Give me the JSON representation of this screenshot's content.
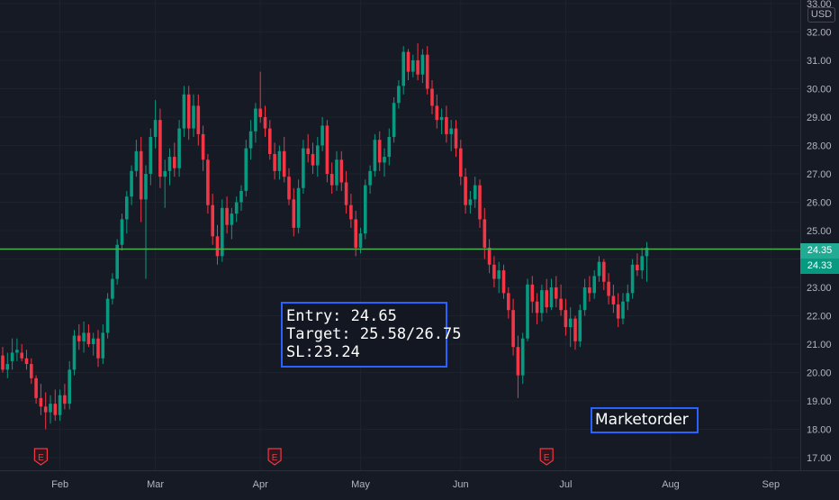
{
  "chart_data": {
    "type": "candlestick",
    "currency": "USD",
    "y_ticks": [
      "17.00",
      "18.00",
      "19.00",
      "20.00",
      "21.00",
      "22.00",
      "23.00",
      "24.00",
      "25.00",
      "26.00",
      "27.00",
      "28.00",
      "29.00",
      "30.00",
      "31.00",
      "32.00",
      "33.00"
    ],
    "ylim": [
      16.9,
      33.0
    ],
    "x_ticks": [
      {
        "label": "Feb",
        "index": 12
      },
      {
        "label": "Mar",
        "index": 32
      },
      {
        "label": "Apr",
        "index": 54
      },
      {
        "label": "May",
        "index": 75
      },
      {
        "label": "Jun",
        "index": 96
      },
      {
        "label": "Jul",
        "index": 118
      },
      {
        "label": "Aug",
        "index": 140
      },
      {
        "label": "Sep",
        "index": 161
      }
    ],
    "earnings_markers": [
      8,
      57,
      114
    ],
    "horizontal_line": 24.35,
    "price_labels": [
      {
        "value": "24.35",
        "color": "#22ab94"
      },
      {
        "value": "24.33",
        "color": "#089981"
      }
    ],
    "candles": [
      [
        20.6,
        20.9,
        20.0,
        20.1
      ],
      [
        20.1,
        20.7,
        19.8,
        20.3
      ],
      [
        20.4,
        21.2,
        20.1,
        20.7
      ],
      [
        20.7,
        21.2,
        20.4,
        20.8
      ],
      [
        20.7,
        21.0,
        20.4,
        20.5
      ],
      [
        20.5,
        20.8,
        20.1,
        20.3
      ],
      [
        20.3,
        20.5,
        19.6,
        19.8
      ],
      [
        19.8,
        19.9,
        18.9,
        19.1
      ],
      [
        19.1,
        19.6,
        18.5,
        18.8
      ],
      [
        18.8,
        19.3,
        18.0,
        18.6
      ],
      [
        18.6,
        19.2,
        18.2,
        18.9
      ],
      [
        18.9,
        19.4,
        18.3,
        18.5
      ],
      [
        18.5,
        19.4,
        18.3,
        19.2
      ],
      [
        19.2,
        19.6,
        18.7,
        18.9
      ],
      [
        18.9,
        20.4,
        18.7,
        20.1
      ],
      [
        20.1,
        21.5,
        19.9,
        21.3
      ],
      [
        21.3,
        21.7,
        20.8,
        21.1
      ],
      [
        21.1,
        21.8,
        20.7,
        21.4
      ],
      [
        21.4,
        21.7,
        20.9,
        21.0
      ],
      [
        21.0,
        21.4,
        20.6,
        21.2
      ],
      [
        21.2,
        21.5,
        20.2,
        20.5
      ],
      [
        20.5,
        21.7,
        20.3,
        21.4
      ],
      [
        21.4,
        22.8,
        21.2,
        22.6
      ],
      [
        22.6,
        23.5,
        22.4,
        23.3
      ],
      [
        23.3,
        24.7,
        23.1,
        24.5
      ],
      [
        24.5,
        25.6,
        24.3,
        25.4
      ],
      [
        25.4,
        26.4,
        24.9,
        26.2
      ],
      [
        26.2,
        27.3,
        25.9,
        27.1
      ],
      [
        27.1,
        28.2,
        26.9,
        27.8
      ],
      [
        27.8,
        28.3,
        25.3,
        26.1
      ],
      [
        26.1,
        27.3,
        23.3,
        27.0
      ],
      [
        27.0,
        28.6,
        26.6,
        28.3
      ],
      [
        28.3,
        29.6,
        27.9,
        28.9
      ],
      [
        28.9,
        29.3,
        26.5,
        26.9
      ],
      [
        26.9,
        27.5,
        25.8,
        27.1
      ],
      [
        27.1,
        27.9,
        26.6,
        27.6
      ],
      [
        27.6,
        28.1,
        26.9,
        27.2
      ],
      [
        27.2,
        28.9,
        26.9,
        28.6
      ],
      [
        28.6,
        30.1,
        28.3,
        29.8
      ],
      [
        29.8,
        30.1,
        28.2,
        28.6
      ],
      [
        28.6,
        29.8,
        28.3,
        29.4
      ],
      [
        29.4,
        29.8,
        28.0,
        28.4
      ],
      [
        28.4,
        28.7,
        27.1,
        27.5
      ],
      [
        27.5,
        27.7,
        25.6,
        25.9
      ],
      [
        25.9,
        26.3,
        24.5,
        24.8
      ],
      [
        24.8,
        25.2,
        23.8,
        24.1
      ],
      [
        24.1,
        26.1,
        23.9,
        25.8
      ],
      [
        25.8,
        26.2,
        24.9,
        25.2
      ],
      [
        25.2,
        25.8,
        24.7,
        25.6
      ],
      [
        25.6,
        26.2,
        25.3,
        26.0
      ],
      [
        26.0,
        26.6,
        25.7,
        26.4
      ],
      [
        26.4,
        28.2,
        26.2,
        27.9
      ],
      [
        27.9,
        28.9,
        27.5,
        28.5
      ],
      [
        28.5,
        29.5,
        28.1,
        29.3
      ],
      [
        29.3,
        30.6,
        28.8,
        29.0
      ],
      [
        29.0,
        29.4,
        28.3,
        28.6
      ],
      [
        28.6,
        28.9,
        27.5,
        27.7
      ],
      [
        27.7,
        28.1,
        26.8,
        27.1
      ],
      [
        27.1,
        28.0,
        26.8,
        27.8
      ],
      [
        27.8,
        28.3,
        26.7,
        26.9
      ],
      [
        26.9,
        27.2,
        25.9,
        26.1
      ],
      [
        26.1,
        26.5,
        24.8,
        25.1
      ],
      [
        25.1,
        26.8,
        24.9,
        26.5
      ],
      [
        26.5,
        28.2,
        26.3,
        27.9
      ],
      [
        27.9,
        28.4,
        27.4,
        27.7
      ],
      [
        27.7,
        28.1,
        27.0,
        27.3
      ],
      [
        27.3,
        28.3,
        26.9,
        28.0
      ],
      [
        28.0,
        29.0,
        27.8,
        28.7
      ],
      [
        28.7,
        28.9,
        26.7,
        27.0
      ],
      [
        27.0,
        27.4,
        26.3,
        26.6
      ],
      [
        26.6,
        27.8,
        26.4,
        27.5
      ],
      [
        27.5,
        27.8,
        26.4,
        26.7
      ],
      [
        26.7,
        27.1,
        25.6,
        25.9
      ],
      [
        25.9,
        26.3,
        25.1,
        25.4
      ],
      [
        25.4,
        25.7,
        24.1,
        24.4
      ],
      [
        24.4,
        25.1,
        24.2,
        24.9
      ],
      [
        24.9,
        26.8,
        24.7,
        26.6
      ],
      [
        26.6,
        27.3,
        26.3,
        27.1
      ],
      [
        27.1,
        28.4,
        26.9,
        28.2
      ],
      [
        28.2,
        28.5,
        27.1,
        27.4
      ],
      [
        27.4,
        27.9,
        26.9,
        27.6
      ],
      [
        27.6,
        28.6,
        27.3,
        28.3
      ],
      [
        28.3,
        29.7,
        28.1,
        29.5
      ],
      [
        29.5,
        30.3,
        29.3,
        30.1
      ],
      [
        30.1,
        31.5,
        29.8,
        31.3
      ],
      [
        31.3,
        31.4,
        30.3,
        30.6
      ],
      [
        30.6,
        31.2,
        30.4,
        31.0
      ],
      [
        31.0,
        31.6,
        30.3,
        30.5
      ],
      [
        30.5,
        31.4,
        30.2,
        31.2
      ],
      [
        31.2,
        31.5,
        29.8,
        30.0
      ],
      [
        30.0,
        30.3,
        29.1,
        29.4
      ],
      [
        29.4,
        29.8,
        28.6,
        28.9
      ],
      [
        28.9,
        29.3,
        28.4,
        29.0
      ],
      [
        29.0,
        29.4,
        28.1,
        28.4
      ],
      [
        28.4,
        28.9,
        27.8,
        28.6
      ],
      [
        28.6,
        28.9,
        27.6,
        27.9
      ],
      [
        27.9,
        28.2,
        26.6,
        26.9
      ],
      [
        26.9,
        27.2,
        25.6,
        25.9
      ],
      [
        25.9,
        26.4,
        25.6,
        26.1
      ],
      [
        26.1,
        26.9,
        25.8,
        26.6
      ],
      [
        26.6,
        26.8,
        25.1,
        25.4
      ],
      [
        25.4,
        25.8,
        24.0,
        24.4
      ],
      [
        24.4,
        24.7,
        23.5,
        23.8
      ],
      [
        23.8,
        24.1,
        23.0,
        23.3
      ],
      [
        23.3,
        23.9,
        22.8,
        23.6
      ],
      [
        23.6,
        23.8,
        22.6,
        22.8
      ],
      [
        22.8,
        23.0,
        21.9,
        22.2
      ],
      [
        22.2,
        22.6,
        20.6,
        20.9
      ],
      [
        20.9,
        21.3,
        19.1,
        19.9
      ],
      [
        19.9,
        21.4,
        19.6,
        21.2
      ],
      [
        21.2,
        23.3,
        21.1,
        23.1
      ],
      [
        23.1,
        23.4,
        22.1,
        22.5
      ],
      [
        22.5,
        22.8,
        21.7,
        22.1
      ],
      [
        22.1,
        23.1,
        21.8,
        22.9
      ],
      [
        22.9,
        23.3,
        22.1,
        22.3
      ],
      [
        22.3,
        23.3,
        22.2,
        23.0
      ],
      [
        23.0,
        23.4,
        22.3,
        22.6
      ],
      [
        22.6,
        23.1,
        22.0,
        22.2
      ],
      [
        22.2,
        22.6,
        21.3,
        21.6
      ],
      [
        21.6,
        22.3,
        20.9,
        21.9
      ],
      [
        21.9,
        22.0,
        20.8,
        21.1
      ],
      [
        21.1,
        22.4,
        20.9,
        22.2
      ],
      [
        22.2,
        23.3,
        22.0,
        23.0
      ],
      [
        23.0,
        23.4,
        22.5,
        22.8
      ],
      [
        22.8,
        23.6,
        22.6,
        23.4
      ],
      [
        23.4,
        24.1,
        23.2,
        23.9
      ],
      [
        23.9,
        24.0,
        22.9,
        23.2
      ],
      [
        23.2,
        23.5,
        22.4,
        22.7
      ],
      [
        22.7,
        23.1,
        22.1,
        22.4
      ],
      [
        22.4,
        22.8,
        21.6,
        21.9
      ],
      [
        21.9,
        22.8,
        21.7,
        22.5
      ],
      [
        22.5,
        23.1,
        22.2,
        22.8
      ],
      [
        22.8,
        24.0,
        22.6,
        23.8
      ],
      [
        23.8,
        24.2,
        23.4,
        23.6
      ],
      [
        23.6,
        24.4,
        23.3,
        24.1
      ],
      [
        24.1,
        24.6,
        23.2,
        24.4
      ]
    ],
    "annotations": [
      {
        "id": "entry",
        "lines": [
          "Entry: 24.65",
          "Target: 25.58/26.75",
          "SL:23.24"
        ]
      },
      {
        "id": "market",
        "lines": [
          "Marketorder"
        ]
      }
    ],
    "colors": {
      "up": "#089981",
      "down": "#f23645",
      "line": "#4caf50",
      "grid": "#1e222d",
      "text": "#b2b5be",
      "annotation_border": "#2962ff"
    }
  },
  "axis": {
    "currency_label": "USD"
  },
  "tags": {
    "green": "24.35",
    "green2": "24.33"
  },
  "annotation": {
    "entry_line": "Entry: 24.65",
    "target_line": "Target: 25.58/26.75",
    "sl_line": "SL:23.24",
    "market": "Marketorder"
  }
}
